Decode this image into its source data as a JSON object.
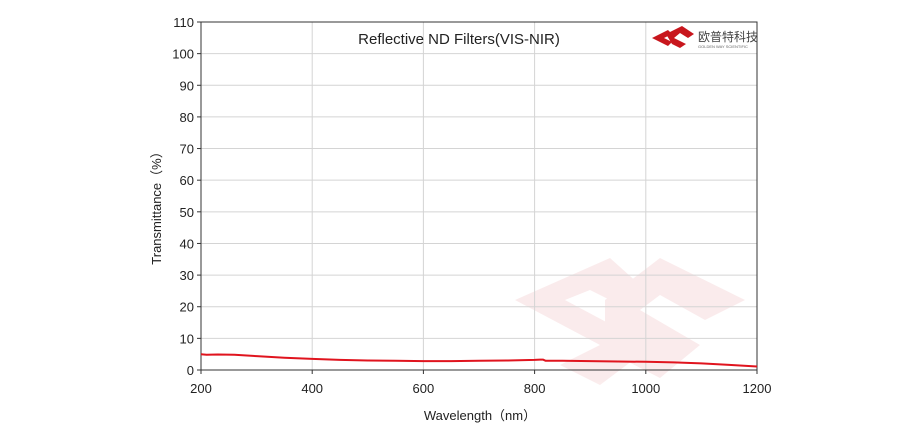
{
  "chart_data": {
    "type": "line",
    "title": "Reflective ND Filters(VIS-NIR)",
    "xlabel": "Wavelength（nm）",
    "ylabel": "Transmittance（%）",
    "xlim": [
      200,
      1200
    ],
    "ylim": [
      0,
      110
    ],
    "xticks": [
      200,
      400,
      600,
      800,
      1000,
      1200
    ],
    "yticks": [
      0,
      10,
      20,
      30,
      40,
      50,
      60,
      70,
      80,
      90,
      100,
      110
    ],
    "grid": true,
    "series": [
      {
        "color": "#e0141e",
        "x": [
          200,
          210,
          230,
          260,
          300,
          350,
          400,
          450,
          500,
          550,
          600,
          650,
          700,
          750,
          800,
          810,
          815,
          820,
          850,
          900,
          950,
          1000,
          1050,
          1100,
          1150,
          1200
        ],
        "y": [
          5.0,
          4.8,
          4.9,
          4.8,
          4.4,
          3.9,
          3.5,
          3.2,
          3.0,
          2.9,
          2.8,
          2.8,
          2.9,
          3.0,
          3.2,
          3.3,
          3.3,
          2.9,
          2.9,
          2.8,
          2.7,
          2.6,
          2.4,
          2.1,
          1.6,
          1.1
        ]
      }
    ]
  },
  "logo": {
    "text_cn": "欧普特科技",
    "text_en": "GOLDEN WAY SCIENTIFIC",
    "color": "#c8161d"
  }
}
